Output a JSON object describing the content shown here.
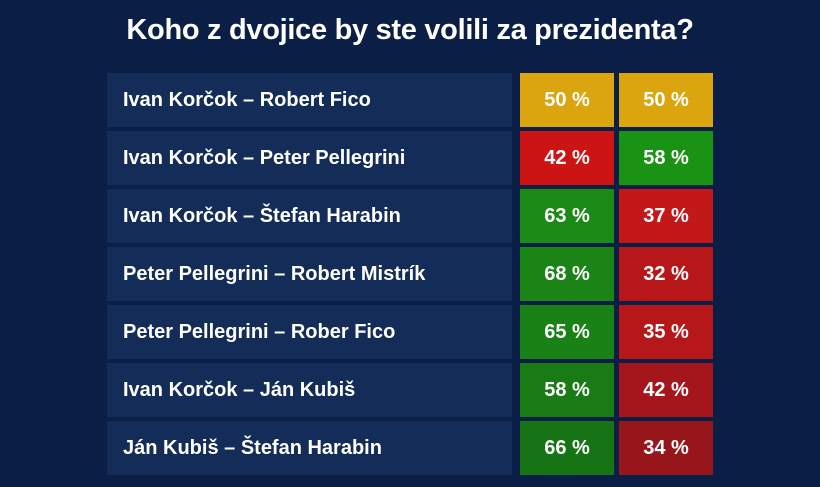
{
  "chart_data": {
    "type": "table",
    "title": "Koho z dvojice by ste volili za prezidenta?",
    "unit": "%",
    "rows": [
      {
        "pair": "Ivan Korčok – Robert Fico",
        "values": [
          50,
          50
        ],
        "colors": [
          "#daa50e",
          "#daa50e"
        ]
      },
      {
        "pair": "Ivan Korčok – Peter Pellegrini",
        "values": [
          42,
          58
        ],
        "colors": [
          "#cc1414",
          "#1a9213"
        ]
      },
      {
        "pair": "Ivan Korčok – Štefan Harabin",
        "values": [
          63,
          37
        ],
        "colors": [
          "#1b8a17",
          "#c21819"
        ]
      },
      {
        "pair": "Peter Pellegrini – Robert Mistrík",
        "values": [
          68,
          32
        ],
        "colors": [
          "#1a8416",
          "#b81719"
        ]
      },
      {
        "pair": "Peter Pellegrini – Rober Fico",
        "values": [
          65,
          35
        ],
        "colors": [
          "#198116",
          "#b5171a"
        ]
      },
      {
        "pair": "Ivan Korčok – Ján Kubiš",
        "values": [
          58,
          42
        ],
        "colors": [
          "#187b15",
          "#a4161c"
        ]
      },
      {
        "pair": "Ján Kubiš – Štefan Harabin",
        "values": [
          66,
          34
        ],
        "colors": [
          "#167414",
          "#97161c"
        ]
      }
    ]
  }
}
